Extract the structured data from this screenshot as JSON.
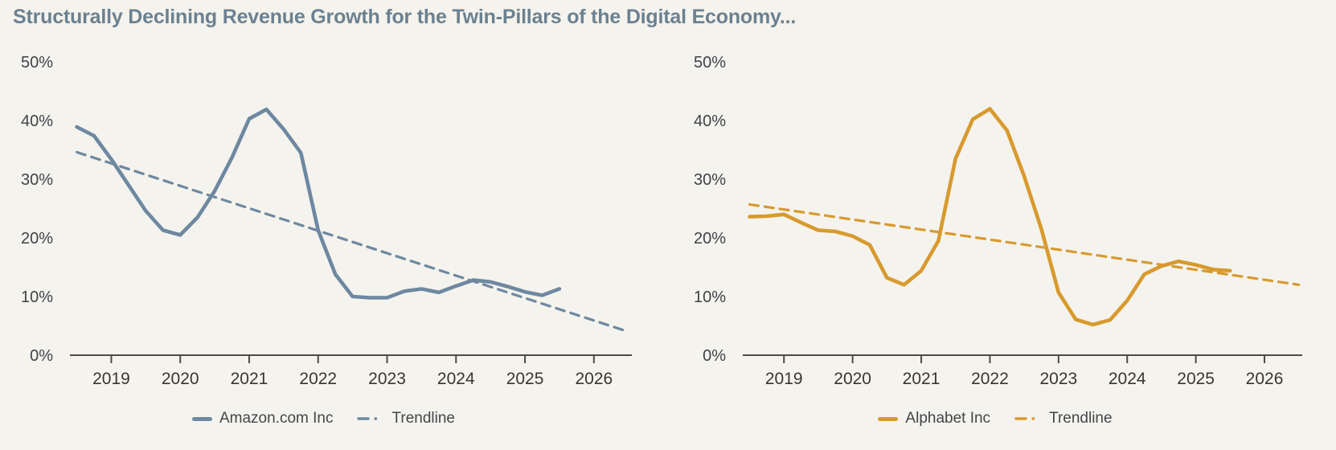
{
  "title": "Structurally Declining Revenue Growth for the Twin-Pillars of the Digital Economy...",
  "colors": {
    "background": "#f5f3ed",
    "title": "#6b8191",
    "amazon": "#6e88a1",
    "alphabet": "#d89a2e",
    "axis": "#4d4b46",
    "x_tick_label": "#393630",
    "y_tick_label": "#3d434a",
    "legend_text": "#42464c"
  },
  "chart_data": [
    {
      "type": "line",
      "name": "amazon-revenue-growth",
      "color_key": "amazon",
      "x": [
        2018.5,
        2018.75,
        2019.0,
        2019.25,
        2019.5,
        2019.75,
        2020.0,
        2020.25,
        2020.5,
        2020.75,
        2021.0,
        2021.25,
        2021.5,
        2021.75,
        2022.0,
        2022.25,
        2022.5,
        2022.75,
        2023.0,
        2023.25,
        2023.5,
        2023.75,
        2024.0,
        2024.25,
        2024.5,
        2024.75,
        2025.0,
        2025.25,
        2025.5
      ],
      "series": [
        {
          "name": "Amazon.com Inc",
          "style": "solid",
          "color_key": "amazon",
          "values": [
            38.9,
            37.4,
            33.4,
            29.0,
            24.6,
            21.3,
            20.5,
            23.5,
            28.0,
            33.7,
            40.3,
            41.9,
            38.5,
            34.5,
            21.3,
            13.8,
            10.0,
            9.8,
            9.8,
            10.9,
            11.3,
            10.7,
            11.8,
            12.8,
            12.5,
            11.7,
            10.8,
            10.2,
            11.3
          ]
        },
        {
          "name": "Trendline",
          "style": "dashed",
          "color_key": "amazon",
          "x": [
            2018.5,
            2026.5
          ],
          "values": [
            34.6,
            4.0
          ]
        }
      ],
      "xticks": [
        "2019",
        "2020",
        "2021",
        "2022",
        "2023",
        "2024",
        "2025",
        "2026"
      ],
      "yticks": [
        "0%",
        "10%",
        "20%",
        "30%",
        "40%",
        "50%"
      ],
      "ylim": [
        0,
        50
      ],
      "xlim": [
        2018.4,
        2026.55
      ],
      "grid": false,
      "legend_position": "bottom-center",
      "legend": [
        {
          "label": "Amazon.com Inc",
          "style": "solid"
        },
        {
          "label": "Trendline",
          "style": "dashed"
        }
      ]
    },
    {
      "type": "line",
      "name": "alphabet-revenue-growth",
      "color_key": "alphabet",
      "x": [
        2018.5,
        2018.75,
        2019.0,
        2019.25,
        2019.5,
        2019.75,
        2020.0,
        2020.25,
        2020.5,
        2020.75,
        2021.0,
        2021.25,
        2021.5,
        2021.75,
        2022.0,
        2022.25,
        2022.5,
        2022.75,
        2023.0,
        2023.25,
        2023.5,
        2023.75,
        2024.0,
        2024.25,
        2024.5,
        2024.75,
        2025.0,
        2025.25,
        2025.5
      ],
      "series": [
        {
          "name": "Alphabet Inc",
          "style": "solid",
          "color_key": "alphabet",
          "values": [
            23.6,
            23.7,
            24.0,
            22.6,
            21.3,
            21.1,
            20.3,
            18.8,
            13.2,
            12.0,
            14.4,
            19.5,
            33.5,
            40.2,
            42.0,
            38.3,
            30.5,
            21.5,
            10.7,
            6.1,
            5.2,
            6.0,
            9.3,
            13.8,
            15.2,
            16.0,
            15.4,
            14.6,
            14.4
          ]
        },
        {
          "name": "Trendline",
          "style": "dashed",
          "color_key": "alphabet",
          "x": [
            2018.5,
            2026.5
          ],
          "values": [
            25.7,
            12.0
          ]
        }
      ],
      "xticks": [
        "2019",
        "2020",
        "2021",
        "2022",
        "2023",
        "2024",
        "2025",
        "2026"
      ],
      "yticks": [
        "0%",
        "10%",
        "20%",
        "30%",
        "40%",
        "50%"
      ],
      "ylim": [
        0,
        50
      ],
      "xlim": [
        2018.4,
        2026.55
      ],
      "grid": false,
      "legend_position": "bottom-center",
      "legend": [
        {
          "label": "Alphabet Inc",
          "style": "solid"
        },
        {
          "label": "Trendline",
          "style": "dashed"
        }
      ]
    }
  ]
}
